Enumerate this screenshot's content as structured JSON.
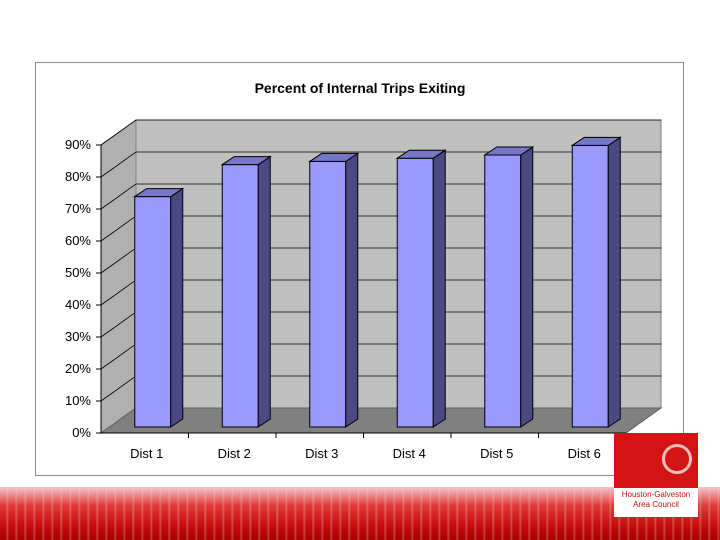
{
  "chart_data": {
    "type": "bar",
    "title": "Percent of Internal Trips Exiting",
    "categories": [
      "Dist 1",
      "Dist 2",
      "Dist 3",
      "Dist 4",
      "Dist 5",
      "Dist 6"
    ],
    "values": [
      72,
      82,
      83,
      84,
      85,
      88
    ],
    "ylim": [
      0,
      90
    ],
    "yticks": [
      "0%",
      "10%",
      "20%",
      "30%",
      "40%",
      "50%",
      "60%",
      "70%",
      "80%",
      "90%"
    ],
    "grid": true,
    "three_d": true,
    "xlabel": "",
    "ylabel": "",
    "colors": {
      "bar_front": "#9999ff",
      "bar_side": "#4a4a82",
      "bar_top": "#7777c8",
      "wall": "#c0c0c0",
      "floor": "#808080",
      "grid": "#000000"
    }
  },
  "logo": {
    "line1": "Houston-Galveston",
    "line2": "Area Council"
  }
}
